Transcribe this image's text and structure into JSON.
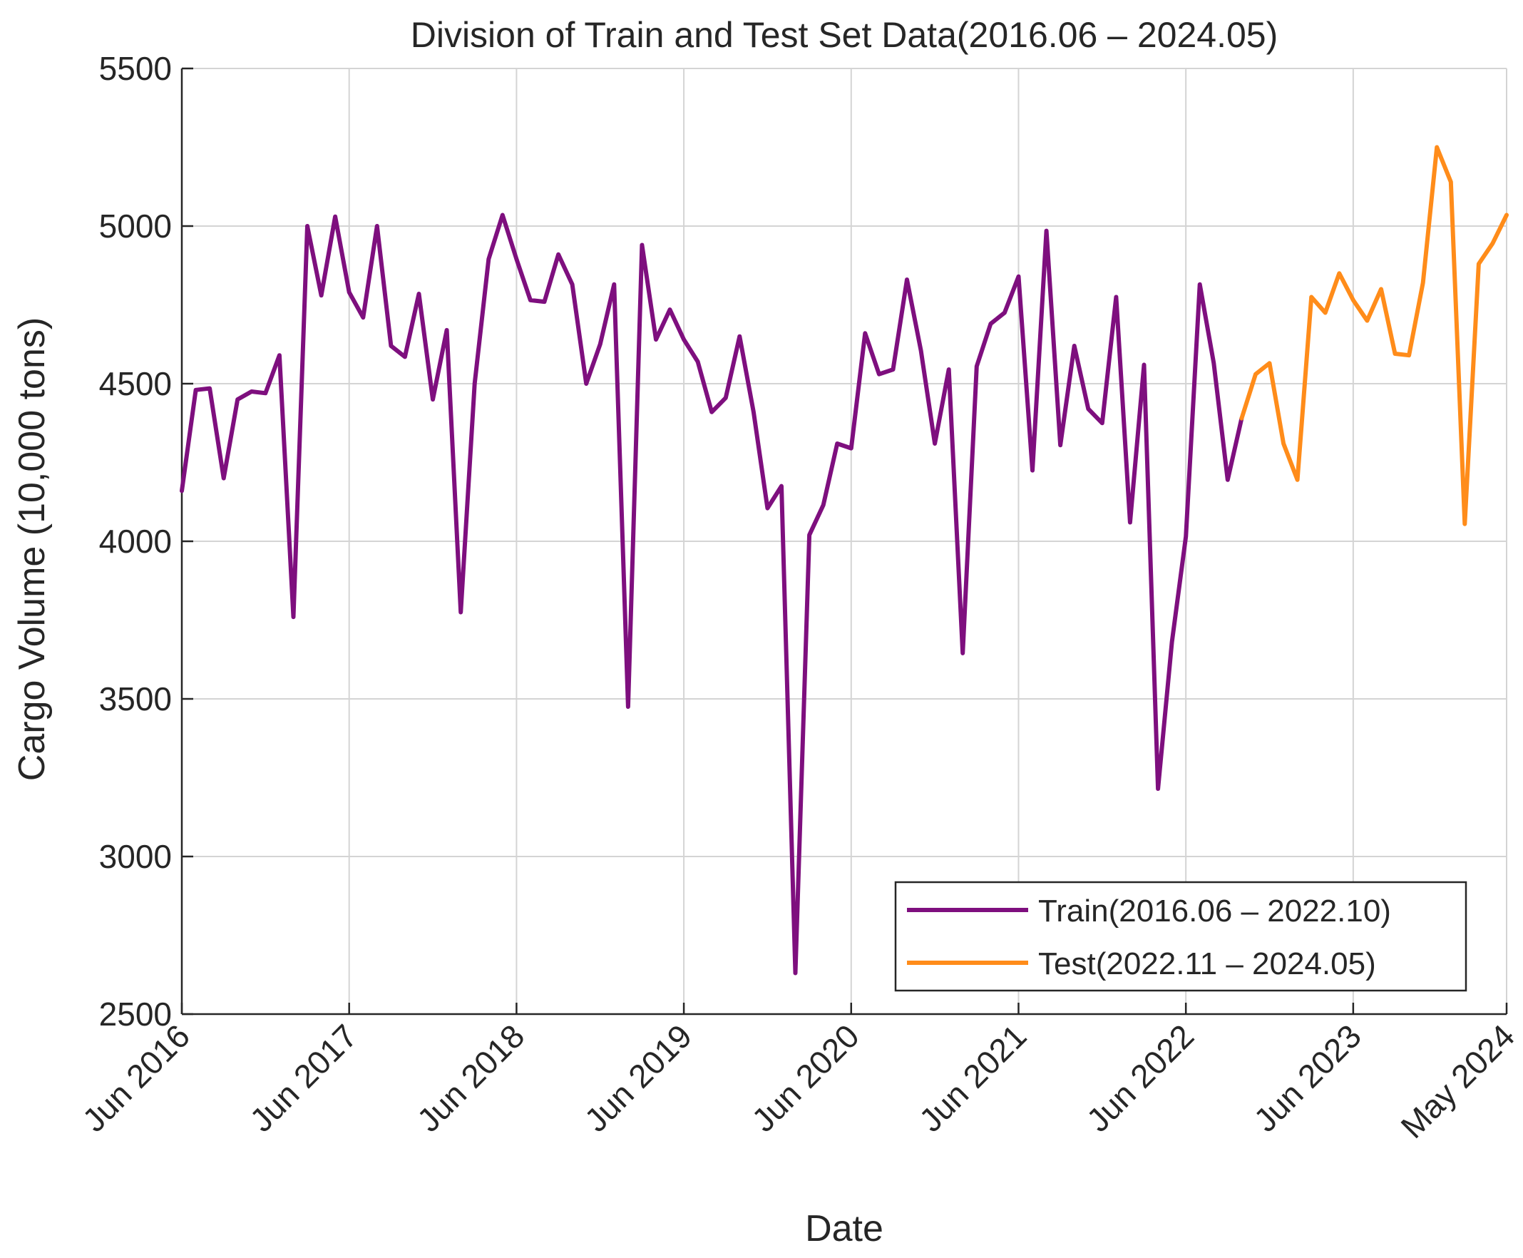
{
  "chart_data": {
    "type": "line",
    "title": "Division of Train and Test Set Data(2016.06 – 2024.05)",
    "xlabel": "Date",
    "ylabel": "Cargo Volume (10,000 tons)",
    "ylim": [
      2500,
      5500
    ],
    "yticks": [
      2500,
      3000,
      3500,
      4000,
      4500,
      5000,
      5500
    ],
    "xlim_months": [
      0,
      95
    ],
    "xticks": [
      {
        "month": 0,
        "label": "Jun 2016"
      },
      {
        "month": 12,
        "label": "Jun 2017"
      },
      {
        "month": 24,
        "label": "Jun 2018"
      },
      {
        "month": 36,
        "label": "Jun 2019"
      },
      {
        "month": 48,
        "label": "Jun 2020"
      },
      {
        "month": 60,
        "label": "Jun 2021"
      },
      {
        "month": 72,
        "label": "Jun 2022"
      },
      {
        "month": 84,
        "label": "Jun 2023"
      },
      {
        "month": 95,
        "label": "May 2024"
      }
    ],
    "grid": true,
    "legend_position": "bottom-right",
    "series": [
      {
        "name": "Train(2016.06 – 2022.10)",
        "color": "#7e0f7e",
        "start_month": 0,
        "values": [
          4160,
          4480,
          4485,
          4200,
          4450,
          4475,
          4470,
          4590,
          3760,
          5000,
          4780,
          5030,
          4790,
          4710,
          5000,
          4620,
          4585,
          4785,
          4450,
          4670,
          3775,
          4500,
          4895,
          5035,
          4895,
          4765,
          4760,
          4910,
          4815,
          4500,
          4625,
          4815,
          3475,
          4940,
          4640,
          4735,
          4640,
          4570,
          4410,
          4455,
          4650,
          4410,
          4105,
          4175,
          2630,
          4020,
          4115,
          4310,
          4295,
          4660,
          4530,
          4545,
          4830,
          4605,
          4310,
          4545,
          3645,
          4555,
          4690,
          4725,
          4840,
          4225,
          4985,
          4305,
          4620,
          4420,
          4375,
          4775,
          4060,
          4560,
          3215,
          3680,
          4015,
          4815,
          4565,
          4195,
          4390
        ]
      },
      {
        "name": "Test(2022.11 – 2024.05)",
        "color": "#ff8c1a",
        "start_month": 76,
        "values": [
          4390,
          4530,
          4565,
          4310,
          4195,
          4775,
          4725,
          4850,
          4765,
          4700,
          4800,
          4595,
          4590,
          4820,
          5250,
          5140,
          4055,
          4880,
          4945,
          5035
        ]
      }
    ]
  }
}
